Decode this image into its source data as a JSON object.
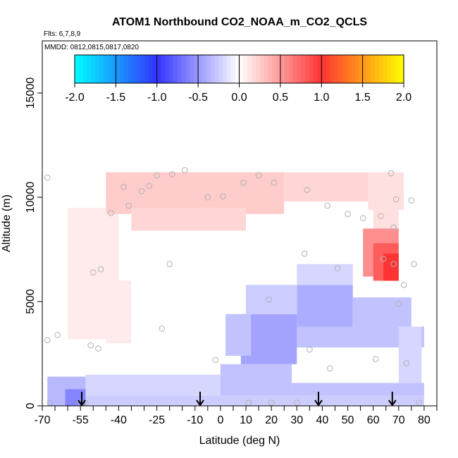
{
  "chart_data": {
    "type": "heatmap",
    "title": "ATOM1 Northbound CO2_NOAA_m_CO2_QCLS",
    "flights_label": "Flts: 6,7,8,9",
    "dates_label": "MMDD: 0812,0815,0817,0820",
    "xlabel": "Latitude (deg N)",
    "ylabel": "Altitude (m)",
    "xlim": [
      -70,
      85
    ],
    "ylim": [
      0,
      17500
    ],
    "x_ticks": [
      -70,
      -55,
      -40,
      -25,
      -10,
      0,
      10,
      20,
      30,
      40,
      50,
      60,
      70,
      80
    ],
    "x_minor_ticks": [
      -65,
      -60,
      -50,
      -45,
      -35,
      -30,
      -20,
      -15,
      -5,
      5,
      15,
      25,
      35,
      45,
      55,
      65,
      75,
      85
    ],
    "y_ticks": [
      0,
      5000,
      10000,
      15000
    ],
    "colorbar": {
      "min": -2.0,
      "max": 2.0,
      "tick_labels": [
        "-2.0",
        "-1.5",
        "-1.0",
        "-0.5",
        "0.0",
        "0.5",
        "1.0",
        "1.5",
        "2.0"
      ],
      "colors": [
        "#00ffff",
        "#3333ff",
        "#ffffff",
        "#ff3333",
        "#ffff00"
      ]
    },
    "cells": [
      {
        "x0": -68,
        "x1": -53,
        "y0": 0,
        "y1": 1400,
        "v": -0.35
      },
      {
        "x0": -61,
        "x1": -53,
        "y0": 0,
        "y1": 800,
        "v": -0.6
      },
      {
        "x0": -53,
        "x1": 80,
        "y0": 0,
        "y1": 500,
        "v": -0.25
      },
      {
        "x0": -53,
        "x1": 0,
        "y0": 500,
        "y1": 1500,
        "v": -0.2
      },
      {
        "x0": 0,
        "x1": 28,
        "y0": 500,
        "y1": 2000,
        "v": -0.3
      },
      {
        "x0": 28,
        "x1": 80,
        "y0": 500,
        "y1": 1100,
        "v": -0.3
      },
      {
        "x0": 28,
        "x1": 80,
        "y0": 2800,
        "y1": 3800,
        "v": -0.3
      },
      {
        "x0": 8,
        "x1": 30,
        "y0": 2000,
        "y1": 4400,
        "v": -0.45
      },
      {
        "x0": 30,
        "x1": 52,
        "y0": 3800,
        "y1": 5800,
        "v": -0.4
      },
      {
        "x0": 2,
        "x1": 12,
        "y0": 2400,
        "y1": 4400,
        "v": -0.3
      },
      {
        "x0": 10,
        "x1": 30,
        "y0": 4400,
        "y1": 5800,
        "v": -0.25
      },
      {
        "x0": 30,
        "x1": 52,
        "y0": 5800,
        "y1": 6800,
        "v": -0.2
      },
      {
        "x0": 52,
        "x1": 75,
        "y0": 3800,
        "y1": 5200,
        "v": -0.3
      },
      {
        "x0": 70,
        "x1": 79,
        "y0": 1100,
        "y1": 3800,
        "v": -0.2
      },
      {
        "x0": -60,
        "x1": -40,
        "y0": 3200,
        "y1": 9500,
        "v": 0.1
      },
      {
        "x0": -45,
        "x1": -35,
        "y0": 3000,
        "y1": 6000,
        "v": 0.1
      },
      {
        "x0": -45,
        "x1": 25,
        "y0": 9200,
        "y1": 11200,
        "v": 0.25
      },
      {
        "x0": -35,
        "x1": 10,
        "y0": 8400,
        "y1": 9500,
        "v": 0.2
      },
      {
        "x0": 25,
        "x1": 68,
        "y0": 9800,
        "y1": 11200,
        "v": 0.2
      },
      {
        "x0": 58,
        "x1": 72,
        "y0": 9400,
        "y1": 11200,
        "v": 0.15
      },
      {
        "x0": 60,
        "x1": 70,
        "y0": 8000,
        "y1": 9400,
        "v": 0.15
      },
      {
        "x0": 56,
        "x1": 70,
        "y0": 6200,
        "y1": 8500,
        "v": 0.55
      },
      {
        "x0": 60,
        "x1": 70,
        "y0": 6000,
        "y1": 7800,
        "v": 0.8
      },
      {
        "x0": 64,
        "x1": 70,
        "y0": 6000,
        "y1": 7300,
        "v": 1.0
      }
    ],
    "points": [
      {
        "x": -68,
        "y": 10950
      },
      {
        "x": -68,
        "y": 3150
      },
      {
        "x": -67,
        "y": 150
      },
      {
        "x": -64,
        "y": 3400
      },
      {
        "x": -55,
        "y": 150
      },
      {
        "x": -53,
        "y": 150
      },
      {
        "x": -51,
        "y": 2900
      },
      {
        "x": -50,
        "y": 6400
      },
      {
        "x": -48,
        "y": 2750
      },
      {
        "x": -47,
        "y": 6550
      },
      {
        "x": -43,
        "y": 9250
      },
      {
        "x": -38,
        "y": 10500
      },
      {
        "x": -36,
        "y": 9600
      },
      {
        "x": -31,
        "y": 10300
      },
      {
        "x": -28,
        "y": 10550
      },
      {
        "x": -25,
        "y": 11050
      },
      {
        "x": -23,
        "y": 3700
      },
      {
        "x": -20,
        "y": 6800
      },
      {
        "x": -19,
        "y": 11100
      },
      {
        "x": -14,
        "y": 11300
      },
      {
        "x": -5,
        "y": 10000
      },
      {
        "x": -2,
        "y": 2200
      },
      {
        "x": 1,
        "y": 10050
      },
      {
        "x": 9,
        "y": 10700
      },
      {
        "x": 11,
        "y": 150
      },
      {
        "x": 15,
        "y": 11050
      },
      {
        "x": 19,
        "y": 5100
      },
      {
        "x": 20,
        "y": 150
      },
      {
        "x": 21,
        "y": 10700
      },
      {
        "x": 30,
        "y": 150
      },
      {
        "x": 33,
        "y": 7300
      },
      {
        "x": 34,
        "y": 10350
      },
      {
        "x": 35,
        "y": 2700
      },
      {
        "x": 42,
        "y": 9600
      },
      {
        "x": 43,
        "y": 1800
      },
      {
        "x": 46,
        "y": 6600
      },
      {
        "x": 50,
        "y": 9200
      },
      {
        "x": 56,
        "y": 9000
      },
      {
        "x": 61,
        "y": 2250
      },
      {
        "x": 63,
        "y": 9100
      },
      {
        "x": 64,
        "y": 7050
      },
      {
        "x": 67,
        "y": 11150
      },
      {
        "x": 68,
        "y": 6800
      },
      {
        "x": 68,
        "y": 8550
      },
      {
        "x": 69,
        "y": 9900
      },
      {
        "x": 70,
        "y": 4900
      },
      {
        "x": 72,
        "y": 5800
      },
      {
        "x": 73,
        "y": 2050
      },
      {
        "x": 75,
        "y": 9850
      },
      {
        "x": 76,
        "y": 6800
      },
      {
        "x": 78,
        "y": 150
      }
    ],
    "arrows_at_latitude": [
      -54.5,
      -8,
      38.5,
      67.5
    ]
  }
}
